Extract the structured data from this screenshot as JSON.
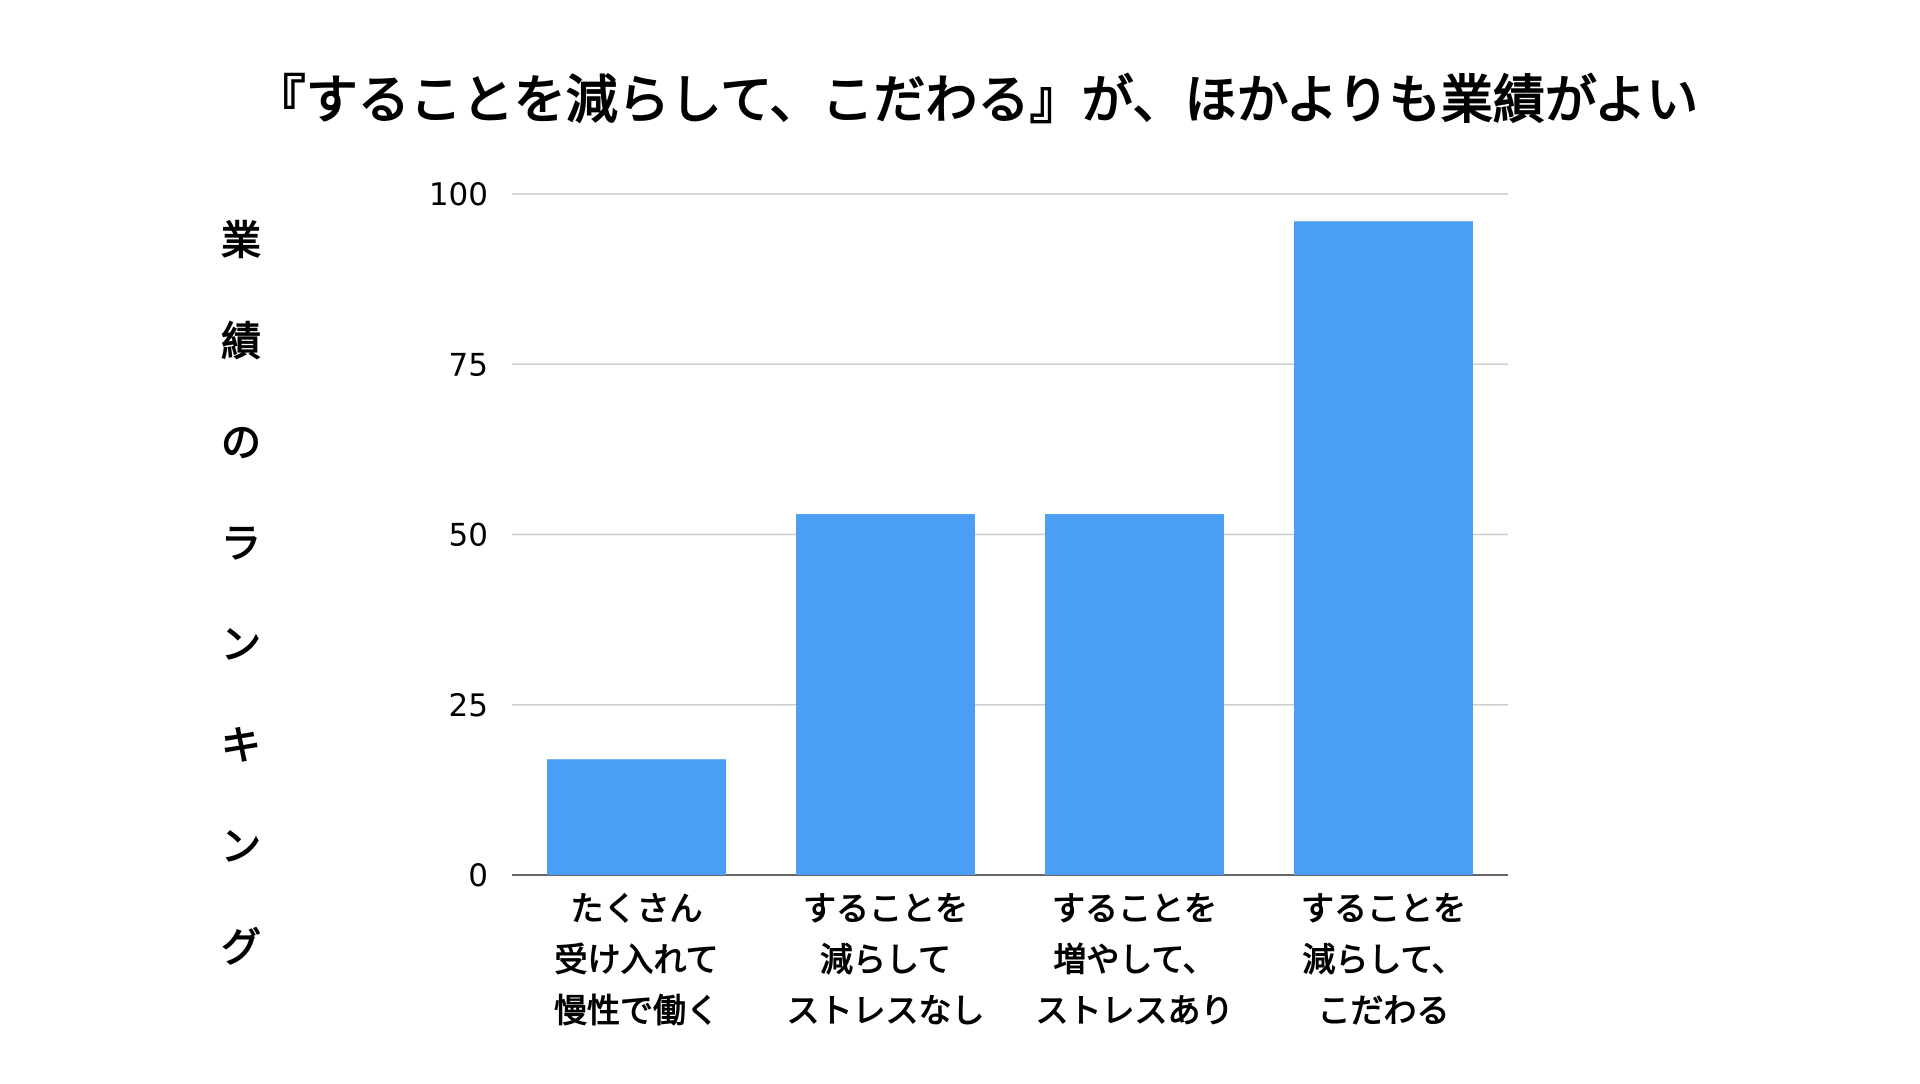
{
  "chart_data": {
    "type": "bar",
    "title": "『することを減らして、こだわる』が、ほかよりも業績がよい",
    "xlabel": "",
    "ylabel": "業績のランキング",
    "categories": [
      [
        "たくさん",
        "受け入れて",
        "慢性で働く"
      ],
      [
        "することを",
        "減らして",
        "ストレスなし"
      ],
      [
        "することを",
        "増やして、",
        "ストレスあり"
      ],
      [
        "することを",
        "減らして、",
        "こだわる"
      ]
    ],
    "values": [
      17,
      53,
      53,
      96
    ],
    "ylim": [
      0,
      100
    ],
    "yticks": [
      0,
      25,
      50,
      75,
      100
    ],
    "grid": true,
    "legend": "none",
    "bar_color": "#4a9ff5"
  }
}
